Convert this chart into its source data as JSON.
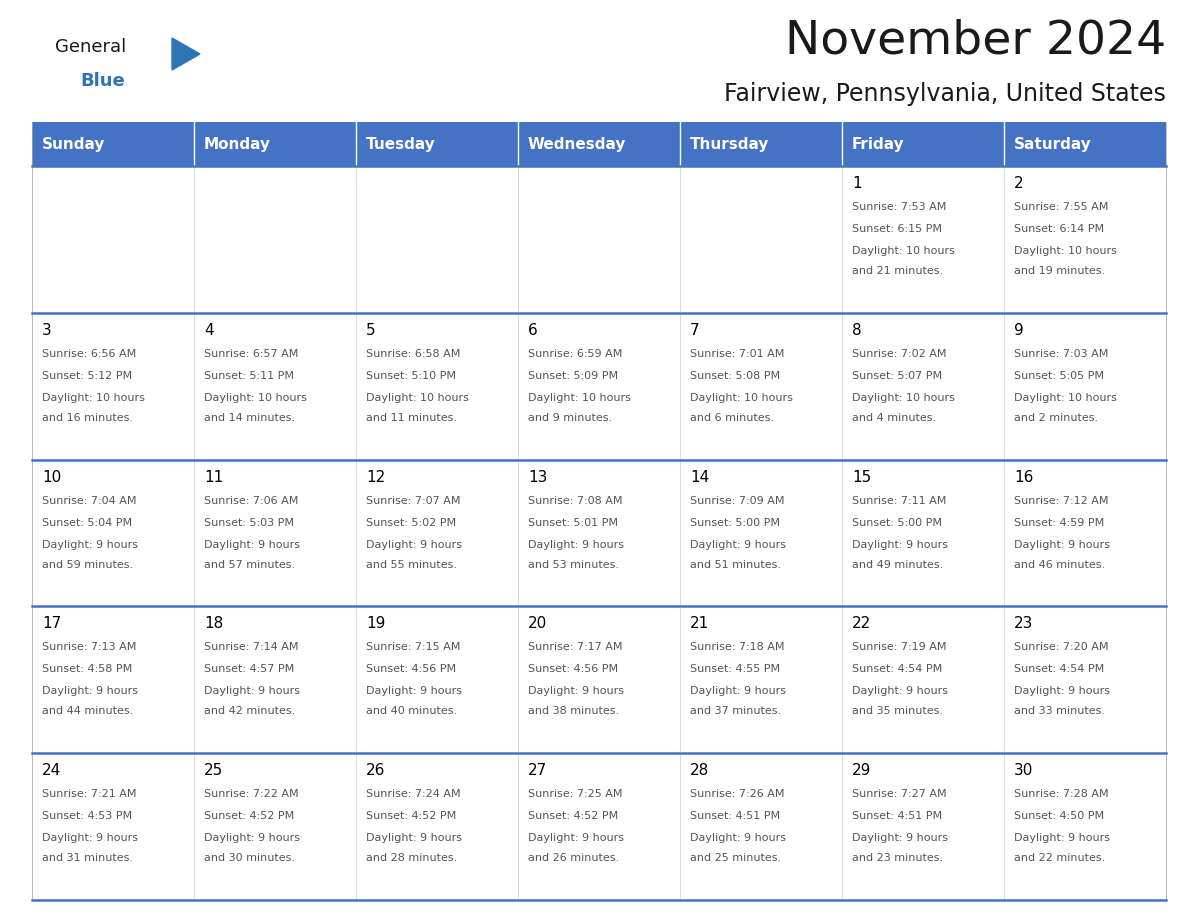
{
  "title": "November 2024",
  "subtitle": "Fairview, Pennsylvania, United States",
  "days_of_week": [
    "Sunday",
    "Monday",
    "Tuesday",
    "Wednesday",
    "Thursday",
    "Friday",
    "Saturday"
  ],
  "header_bg": "#4472C4",
  "header_text_color": "#FFFFFF",
  "row_line_color": "#4472C4",
  "text_color": "#555555",
  "day_number_color": "#000000",
  "calendar_data": [
    [
      {
        "day": null,
        "sunrise": null,
        "sunset": null,
        "daylight": null
      },
      {
        "day": null,
        "sunrise": null,
        "sunset": null,
        "daylight": null
      },
      {
        "day": null,
        "sunrise": null,
        "sunset": null,
        "daylight": null
      },
      {
        "day": null,
        "sunrise": null,
        "sunset": null,
        "daylight": null
      },
      {
        "day": null,
        "sunrise": null,
        "sunset": null,
        "daylight": null
      },
      {
        "day": 1,
        "sunrise": "7:53 AM",
        "sunset": "6:15 PM",
        "daylight": "10 hours\nand 21 minutes."
      },
      {
        "day": 2,
        "sunrise": "7:55 AM",
        "sunset": "6:14 PM",
        "daylight": "10 hours\nand 19 minutes."
      }
    ],
    [
      {
        "day": 3,
        "sunrise": "6:56 AM",
        "sunset": "5:12 PM",
        "daylight": "10 hours\nand 16 minutes."
      },
      {
        "day": 4,
        "sunrise": "6:57 AM",
        "sunset": "5:11 PM",
        "daylight": "10 hours\nand 14 minutes."
      },
      {
        "day": 5,
        "sunrise": "6:58 AM",
        "sunset": "5:10 PM",
        "daylight": "10 hours\nand 11 minutes."
      },
      {
        "day": 6,
        "sunrise": "6:59 AM",
        "sunset": "5:09 PM",
        "daylight": "10 hours\nand 9 minutes."
      },
      {
        "day": 7,
        "sunrise": "7:01 AM",
        "sunset": "5:08 PM",
        "daylight": "10 hours\nand 6 minutes."
      },
      {
        "day": 8,
        "sunrise": "7:02 AM",
        "sunset": "5:07 PM",
        "daylight": "10 hours\nand 4 minutes."
      },
      {
        "day": 9,
        "sunrise": "7:03 AM",
        "sunset": "5:05 PM",
        "daylight": "10 hours\nand 2 minutes."
      }
    ],
    [
      {
        "day": 10,
        "sunrise": "7:04 AM",
        "sunset": "5:04 PM",
        "daylight": "9 hours\nand 59 minutes."
      },
      {
        "day": 11,
        "sunrise": "7:06 AM",
        "sunset": "5:03 PM",
        "daylight": "9 hours\nand 57 minutes."
      },
      {
        "day": 12,
        "sunrise": "7:07 AM",
        "sunset": "5:02 PM",
        "daylight": "9 hours\nand 55 minutes."
      },
      {
        "day": 13,
        "sunrise": "7:08 AM",
        "sunset": "5:01 PM",
        "daylight": "9 hours\nand 53 minutes."
      },
      {
        "day": 14,
        "sunrise": "7:09 AM",
        "sunset": "5:00 PM",
        "daylight": "9 hours\nand 51 minutes."
      },
      {
        "day": 15,
        "sunrise": "7:11 AM",
        "sunset": "5:00 PM",
        "daylight": "9 hours\nand 49 minutes."
      },
      {
        "day": 16,
        "sunrise": "7:12 AM",
        "sunset": "4:59 PM",
        "daylight": "9 hours\nand 46 minutes."
      }
    ],
    [
      {
        "day": 17,
        "sunrise": "7:13 AM",
        "sunset": "4:58 PM",
        "daylight": "9 hours\nand 44 minutes."
      },
      {
        "day": 18,
        "sunrise": "7:14 AM",
        "sunset": "4:57 PM",
        "daylight": "9 hours\nand 42 minutes."
      },
      {
        "day": 19,
        "sunrise": "7:15 AM",
        "sunset": "4:56 PM",
        "daylight": "9 hours\nand 40 minutes."
      },
      {
        "day": 20,
        "sunrise": "7:17 AM",
        "sunset": "4:56 PM",
        "daylight": "9 hours\nand 38 minutes."
      },
      {
        "day": 21,
        "sunrise": "7:18 AM",
        "sunset": "4:55 PM",
        "daylight": "9 hours\nand 37 minutes."
      },
      {
        "day": 22,
        "sunrise": "7:19 AM",
        "sunset": "4:54 PM",
        "daylight": "9 hours\nand 35 minutes."
      },
      {
        "day": 23,
        "sunrise": "7:20 AM",
        "sunset": "4:54 PM",
        "daylight": "9 hours\nand 33 minutes."
      }
    ],
    [
      {
        "day": 24,
        "sunrise": "7:21 AM",
        "sunset": "4:53 PM",
        "daylight": "9 hours\nand 31 minutes."
      },
      {
        "day": 25,
        "sunrise": "7:22 AM",
        "sunset": "4:52 PM",
        "daylight": "9 hours\nand 30 minutes."
      },
      {
        "day": 26,
        "sunrise": "7:24 AM",
        "sunset": "4:52 PM",
        "daylight": "9 hours\nand 28 minutes."
      },
      {
        "day": 27,
        "sunrise": "7:25 AM",
        "sunset": "4:52 PM",
        "daylight": "9 hours\nand 26 minutes."
      },
      {
        "day": 28,
        "sunrise": "7:26 AM",
        "sunset": "4:51 PM",
        "daylight": "9 hours\nand 25 minutes."
      },
      {
        "day": 29,
        "sunrise": "7:27 AM",
        "sunset": "4:51 PM",
        "daylight": "9 hours\nand 23 minutes."
      },
      {
        "day": 30,
        "sunrise": "7:28 AM",
        "sunset": "4:50 PM",
        "daylight": "9 hours\nand 22 minutes."
      }
    ]
  ],
  "logo_general_color": "#1A1A1A",
  "logo_blue_color": "#2E75B6",
  "logo_triangle_color": "#2E75B6",
  "fig_width": 11.88,
  "fig_height": 9.18,
  "dpi": 100
}
